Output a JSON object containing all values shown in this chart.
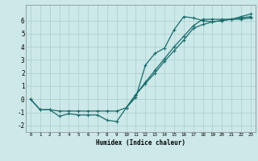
{
  "line1_x": [
    0,
    1,
    2,
    3,
    4,
    5,
    6,
    7,
    8,
    9,
    10,
    11,
    12,
    13,
    14,
    15,
    16,
    17,
    18,
    19,
    20,
    21,
    22,
    23
  ],
  "line1_y": [
    0.0,
    -0.8,
    -0.8,
    -1.3,
    -1.1,
    -1.2,
    -1.2,
    -1.2,
    -1.6,
    -1.7,
    -0.65,
    0.15,
    2.6,
    3.5,
    3.9,
    5.3,
    6.3,
    6.2,
    6.0,
    5.9,
    6.0,
    6.1,
    6.3,
    6.5
  ],
  "line2_x": [
    0,
    1,
    2,
    3,
    4,
    5,
    6,
    7,
    8,
    9,
    10,
    11,
    12,
    13,
    14,
    15,
    16,
    17,
    18,
    19,
    20,
    21,
    22,
    23
  ],
  "line2_y": [
    0.0,
    -0.8,
    -0.8,
    -0.9,
    -0.9,
    -0.9,
    -0.9,
    -0.9,
    -0.9,
    -0.9,
    -0.65,
    0.35,
    1.2,
    2.0,
    2.9,
    3.7,
    4.5,
    5.4,
    5.7,
    5.9,
    6.0,
    6.1,
    6.2,
    6.3
  ],
  "line3_x": [
    10,
    11,
    12,
    13,
    14,
    15,
    16,
    17,
    18,
    19,
    20,
    21,
    22,
    23
  ],
  "line3_y": [
    -0.65,
    0.35,
    1.3,
    2.2,
    3.1,
    4.0,
    4.8,
    5.6,
    6.1,
    6.1,
    6.1,
    6.1,
    6.1,
    6.2
  ],
  "color": "#1a6b6b",
  "bg_color": "#cce8e8",
  "grid_color": "#aacece",
  "xlabel": "Humidex (Indice chaleur)",
  "xlim": [
    -0.5,
    23.5
  ],
  "ylim": [
    -2.5,
    7.2
  ],
  "yticks": [
    -2,
    -1,
    0,
    1,
    2,
    3,
    4,
    5,
    6
  ],
  "xticks": [
    0,
    1,
    2,
    3,
    4,
    5,
    6,
    7,
    8,
    9,
    10,
    11,
    12,
    13,
    14,
    15,
    16,
    17,
    18,
    19,
    20,
    21,
    22,
    23
  ],
  "marker": "+"
}
